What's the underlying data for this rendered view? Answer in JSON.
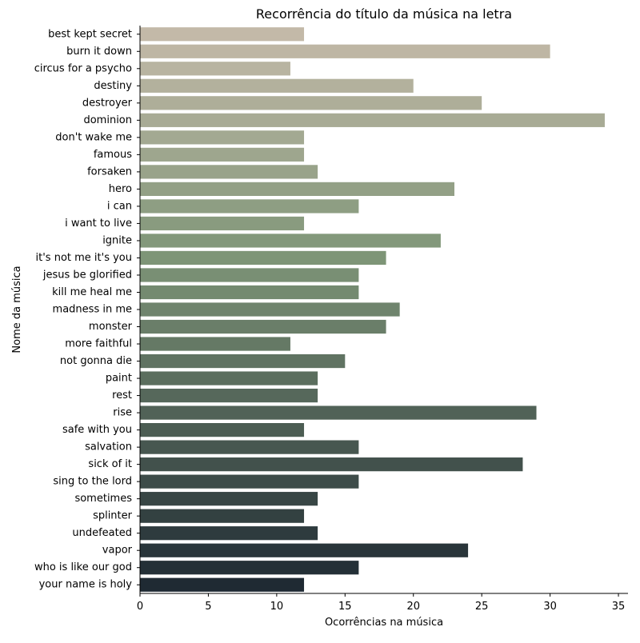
{
  "chart_data": {
    "type": "bar",
    "orientation": "horizontal",
    "title": "Recorrência do título da música na letra",
    "xlabel": "Ocorrências na música",
    "ylabel": "Nome da música",
    "xlim": [
      0,
      35.7
    ],
    "xticks": [
      "0",
      "5",
      "10",
      "15",
      "20",
      "25",
      "30",
      "35"
    ],
    "grid": false,
    "categories": [
      "best kept secret",
      "burn it down",
      "circus for a psycho",
      "destiny",
      "destroyer",
      "dominion",
      "don't wake me",
      "famous",
      "forsaken",
      "hero",
      "i can",
      "i want to live",
      "ignite",
      "it's not me it's you",
      "jesus be glorified",
      "kill me heal me",
      "madness in me",
      "monster",
      "more faithful",
      "not gonna die",
      "paint",
      "rest",
      "rise",
      "safe with you",
      "salvation",
      "sick of it",
      "sing to the lord",
      "sometimes",
      "splinter",
      "undefeated",
      "vapor",
      "who is like our god",
      "your name is holy"
    ],
    "values": [
      12,
      30,
      11,
      20,
      25,
      34,
      12,
      12,
      13,
      23,
      16,
      12,
      22,
      18,
      16,
      16,
      19,
      18,
      11,
      15,
      13,
      13,
      29,
      12,
      16,
      28,
      16,
      13,
      12,
      13,
      24,
      16,
      12
    ],
    "palette": {
      "start": "#c3b9a8",
      "end": "#1f2a33"
    }
  }
}
